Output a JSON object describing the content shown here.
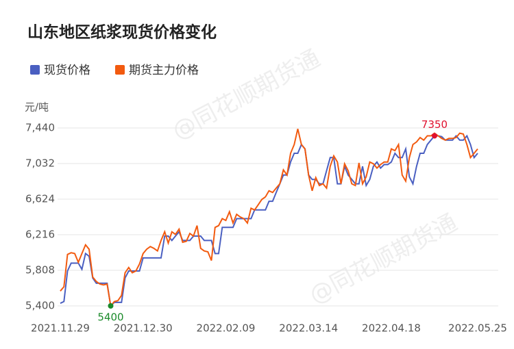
{
  "chart_data": {
    "type": "line",
    "title": "山东地区纸浆现货价格变化",
    "y_unit": "元/吨",
    "watermark": "@同花顺期货通",
    "categories": [
      "2021.11.29",
      null,
      null,
      null,
      null,
      null,
      null,
      null,
      null,
      null,
      null,
      null,
      null,
      null,
      null,
      null,
      null,
      null,
      null,
      null,
      null,
      null,
      null,
      "2021.12.30",
      null,
      null,
      null,
      null,
      null,
      null,
      null,
      null,
      null,
      null,
      null,
      null,
      null,
      null,
      null,
      null,
      null,
      null,
      null,
      null,
      null,
      null,
      "2022.02.09",
      null,
      null,
      null,
      null,
      null,
      null,
      null,
      null,
      null,
      null,
      null,
      null,
      null,
      null,
      null,
      null,
      null,
      null,
      null,
      null,
      null,
      null,
      "2022.03.14",
      null,
      null,
      null,
      null,
      null,
      null,
      null,
      null,
      null,
      null,
      null,
      null,
      null,
      null,
      null,
      null,
      null,
      null,
      null,
      null,
      null,
      null,
      "2022.04.18",
      null,
      null,
      null,
      null,
      null,
      null,
      null,
      null,
      null,
      null,
      null,
      null,
      null,
      null,
      null,
      null,
      null,
      null,
      null,
      null,
      null,
      null,
      null,
      "2022.05.25"
    ],
    "series": [
      {
        "name": "现货价格",
        "color": "#4a5fc1",
        "values": [
          5430,
          5450,
          5800,
          5890,
          5890,
          5890,
          5820,
          6000,
          5970,
          5720,
          5660,
          5660,
          5660,
          5660,
          5400,
          5440,
          5440,
          5440,
          5720,
          5800,
          5800,
          5800,
          5800,
          5950,
          5950,
          5950,
          5950,
          5950,
          5950,
          6200,
          6200,
          6150,
          6200,
          6250,
          6150,
          6150,
          6150,
          6200,
          6200,
          6200,
          6150,
          6150,
          6150,
          6000,
          6000,
          6300,
          6300,
          6300,
          6300,
          6400,
          6400,
          6400,
          6400,
          6400,
          6500,
          6500,
          6500,
          6500,
          6600,
          6600,
          6700,
          6800,
          6900,
          6900,
          7050,
          7150,
          7150,
          7250,
          7200,
          6900,
          6850,
          6850,
          6800,
          6800,
          6950,
          7100,
          7100,
          6800,
          6800,
          7000,
          6900,
          6850,
          6800,
          6800,
          7000,
          6780,
          6850,
          7000,
          7050,
          6980,
          7020,
          7020,
          7050,
          7150,
          7100,
          7100,
          7200,
          6880,
          6800,
          7000,
          7150,
          7150,
          7250,
          7300,
          7350,
          7350,
          7340,
          7300,
          7300,
          7300,
          7350,
          7300,
          7300,
          7350,
          7250,
          7100,
          7150
        ]
      },
      {
        "name": "期货主力价格",
        "color": "#f25a0f",
        "values": [
          5570,
          5620,
          5990,
          6010,
          6000,
          5900,
          6000,
          6100,
          6050,
          5730,
          5680,
          5650,
          5640,
          5650,
          5400,
          5450,
          5460,
          5520,
          5780,
          5840,
          5780,
          5800,
          5880,
          6000,
          6050,
          6080,
          6060,
          6030,
          6150,
          6250,
          6120,
          6250,
          6220,
          6280,
          6130,
          6140,
          6230,
          6200,
          6320,
          6060,
          6030,
          6020,
          5920,
          6300,
          6320,
          6400,
          6380,
          6480,
          6350,
          6450,
          6420,
          6400,
          6350,
          6520,
          6500,
          6560,
          6620,
          6650,
          6720,
          6700,
          6750,
          6800,
          6960,
          6900,
          7150,
          7250,
          7430,
          7250,
          7200,
          6900,
          6720,
          6870,
          6780,
          6800,
          6750,
          7000,
          7120,
          7050,
          6800,
          7030,
          6950,
          6800,
          6780,
          7040,
          6800,
          6880,
          7050,
          7030,
          6980,
          7020,
          7050,
          7050,
          7200,
          7180,
          7250,
          6900,
          6830,
          7100,
          7250,
          7280,
          7330,
          7300,
          7350,
          7350,
          7380,
          7350,
          7320,
          7300,
          7320,
          7320,
          7330,
          7380,
          7370,
          7250,
          7100,
          7150,
          7200
        ]
      }
    ],
    "annotations": [
      {
        "series": 1,
        "index": 14,
        "color": "#1a8a2a"
      },
      {
        "series": 0,
        "index": 104,
        "color": "#e0102e"
      }
    ],
    "ylim": [
      5400,
      7440
    ],
    "yticks": [
      {
        "value": 5400,
        "label": "5,400"
      },
      {
        "value": 5808,
        "label": "5,808"
      },
      {
        "value": 6216,
        "label": "6,216"
      },
      {
        "value": 6624,
        "label": "6,624"
      },
      {
        "value": 7032,
        "label": "7,032"
      },
      {
        "value": 7440,
        "label": "7,440"
      }
    ],
    "grid": true
  }
}
